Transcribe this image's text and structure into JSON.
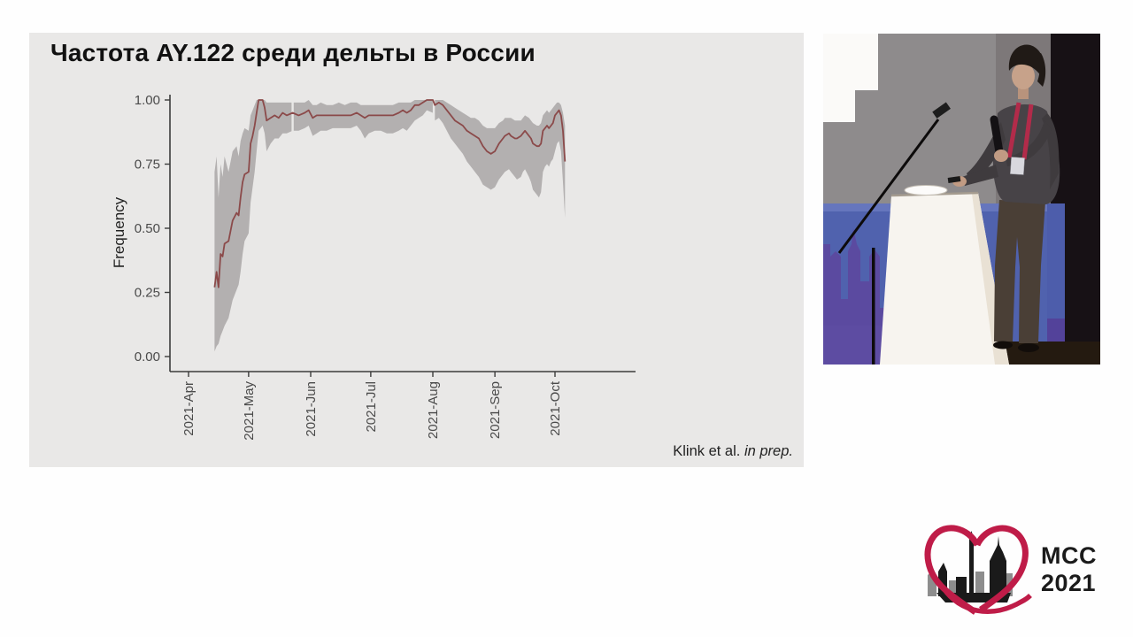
{
  "slide": {
    "background": "#e9e8e7",
    "attribution": {
      "normal": "Klink et al. ",
      "italic": "in prep."
    }
  },
  "chart_data": {
    "type": "line",
    "title": "Частота AY.122 среди дельты в России",
    "ylabel": "Frequency",
    "xlabel": "",
    "legend": "none",
    "grid": false,
    "ylim": [
      0,
      1
    ],
    "x_axis_range_days_from_apr1": [
      -9,
      223
    ],
    "x_tick_labels": [
      "2021-Apr",
      "2021-May",
      "2021-Jun",
      "2021-Jul",
      "2021-Aug",
      "2021-Sep",
      "2021-Oct"
    ],
    "x_tick_days": [
      0,
      30,
      61,
      91,
      122,
      153,
      183
    ],
    "y_tick_labels": [
      "1.00",
      "0.75",
      "0.50",
      "0.25",
      "0.00"
    ],
    "y_tick_values": [
      1.0,
      0.75,
      0.5,
      0.25,
      0.0
    ],
    "ribbon_gap_days": [
      52,
      122.5
    ],
    "colors": {
      "line": "#8b4a4a",
      "band": "#b3b0b0",
      "axis": "#3c3c3c",
      "tick_text": "#4a4a4a",
      "title_text": "#111111"
    },
    "series": [
      {
        "name": "AY.122 frequency among Delta in Russia (with confidence band)",
        "points_day_value_lo_hi": [
          [
            13,
            0.27,
            0.02,
            0.72
          ],
          [
            14,
            0.33,
            0.04,
            0.78
          ],
          [
            15,
            0.27,
            0.05,
            0.62
          ],
          [
            16,
            0.4,
            0.08,
            0.75
          ],
          [
            17,
            0.39,
            0.1,
            0.7
          ],
          [
            18,
            0.44,
            0.12,
            0.78
          ],
          [
            20,
            0.45,
            0.15,
            0.72
          ],
          [
            22,
            0.53,
            0.22,
            0.8
          ],
          [
            24,
            0.56,
            0.26,
            0.82
          ],
          [
            25,
            0.55,
            0.28,
            0.78
          ],
          [
            26,
            0.62,
            0.33,
            0.84
          ],
          [
            27,
            0.68,
            0.4,
            0.87
          ],
          [
            28,
            0.71,
            0.45,
            0.89
          ],
          [
            30,
            0.72,
            0.48,
            0.88
          ],
          [
            31,
            0.83,
            0.6,
            0.94
          ],
          [
            32,
            0.86,
            0.66,
            0.96
          ],
          [
            33,
            0.9,
            0.72,
            0.98
          ],
          [
            34,
            0.95,
            0.8,
            1.0
          ],
          [
            35,
            1.0,
            0.88,
            1.0
          ],
          [
            37,
            1.0,
            0.9,
            1.0
          ],
          [
            38,
            0.97,
            0.87,
            1.0
          ],
          [
            39,
            0.92,
            0.8,
            0.99
          ],
          [
            41,
            0.93,
            0.83,
            0.99
          ],
          [
            43,
            0.94,
            0.85,
            0.99
          ],
          [
            45,
            0.93,
            0.85,
            0.99
          ],
          [
            47,
            0.95,
            0.87,
            0.99
          ],
          [
            49,
            0.94,
            0.87,
            0.99
          ],
          [
            52,
            0.95,
            0.88,
            0.99
          ],
          [
            55,
            0.94,
            0.88,
            0.99
          ],
          [
            58,
            0.95,
            0.89,
            0.99
          ],
          [
            60,
            0.96,
            0.9,
            1.0
          ],
          [
            62,
            0.93,
            0.86,
            0.98
          ],
          [
            64,
            0.94,
            0.87,
            0.98
          ],
          [
            66,
            0.94,
            0.88,
            0.99
          ],
          [
            69,
            0.94,
            0.88,
            0.98
          ],
          [
            72,
            0.94,
            0.89,
            0.98
          ],
          [
            75,
            0.94,
            0.89,
            0.99
          ],
          [
            78,
            0.94,
            0.89,
            0.98
          ],
          [
            81,
            0.94,
            0.89,
            0.99
          ],
          [
            84,
            0.95,
            0.9,
            0.99
          ],
          [
            86,
            0.94,
            0.88,
            0.98
          ],
          [
            88,
            0.93,
            0.85,
            0.98
          ],
          [
            90,
            0.94,
            0.87,
            0.98
          ],
          [
            93,
            0.94,
            0.88,
            0.98
          ],
          [
            96,
            0.94,
            0.88,
            0.98
          ],
          [
            99,
            0.94,
            0.87,
            0.98
          ],
          [
            102,
            0.94,
            0.87,
            0.98
          ],
          [
            105,
            0.95,
            0.88,
            0.99
          ],
          [
            107,
            0.96,
            0.89,
            0.99
          ],
          [
            109,
            0.95,
            0.88,
            0.99
          ],
          [
            111,
            0.96,
            0.9,
            0.99
          ],
          [
            113,
            0.98,
            0.92,
            1.0
          ],
          [
            115,
            0.98,
            0.93,
            1.0
          ],
          [
            117,
            0.99,
            0.94,
            1.0
          ],
          [
            119,
            1.0,
            0.96,
            1.0
          ],
          [
            122,
            1.0,
            0.95,
            1.0
          ],
          [
            123,
            0.98,
            0.92,
            1.0
          ],
          [
            125,
            0.99,
            0.93,
            1.0
          ],
          [
            127,
            0.98,
            0.91,
            1.0
          ],
          [
            129,
            0.96,
            0.88,
            0.99
          ],
          [
            131,
            0.94,
            0.85,
            0.98
          ],
          [
            133,
            0.92,
            0.83,
            0.97
          ],
          [
            135,
            0.91,
            0.81,
            0.96
          ],
          [
            137,
            0.9,
            0.79,
            0.95
          ],
          [
            139,
            0.88,
            0.76,
            0.94
          ],
          [
            141,
            0.87,
            0.74,
            0.93
          ],
          [
            143,
            0.86,
            0.72,
            0.93
          ],
          [
            145,
            0.85,
            0.7,
            0.92
          ],
          [
            147,
            0.82,
            0.67,
            0.9
          ],
          [
            149,
            0.8,
            0.66,
            0.89
          ],
          [
            151,
            0.79,
            0.65,
            0.89
          ],
          [
            153,
            0.8,
            0.66,
            0.89
          ],
          [
            155,
            0.83,
            0.69,
            0.91
          ],
          [
            157,
            0.85,
            0.71,
            0.92
          ],
          [
            158,
            0.86,
            0.72,
            0.93
          ],
          [
            160,
            0.87,
            0.73,
            0.93
          ],
          [
            161,
            0.86,
            0.72,
            0.93
          ],
          [
            163,
            0.85,
            0.7,
            0.92
          ],
          [
            164,
            0.85,
            0.69,
            0.92
          ],
          [
            166,
            0.86,
            0.7,
            0.92
          ],
          [
            167,
            0.87,
            0.72,
            0.93
          ],
          [
            168,
            0.88,
            0.73,
            0.94
          ],
          [
            170,
            0.86,
            0.7,
            0.93
          ],
          [
            171,
            0.85,
            0.68,
            0.92
          ],
          [
            172,
            0.83,
            0.65,
            0.91
          ],
          [
            174,
            0.82,
            0.63,
            0.9
          ],
          [
            175,
            0.82,
            0.62,
            0.9
          ],
          [
            176,
            0.83,
            0.64,
            0.91
          ],
          [
            177,
            0.88,
            0.72,
            0.94
          ],
          [
            178,
            0.89,
            0.74,
            0.95
          ],
          [
            179,
            0.9,
            0.75,
            0.96
          ],
          [
            180,
            0.89,
            0.74,
            0.95
          ],
          [
            181,
            0.9,
            0.76,
            0.96
          ],
          [
            182,
            0.91,
            0.77,
            0.97
          ],
          [
            183,
            0.94,
            0.8,
            0.98
          ],
          [
            184,
            0.95,
            0.83,
            0.99
          ],
          [
            185,
            0.96,
            0.84,
            0.99
          ],
          [
            186,
            0.94,
            0.8,
            0.98
          ],
          [
            187,
            0.88,
            0.68,
            0.95
          ],
          [
            188,
            0.76,
            0.54,
            0.9
          ]
        ]
      }
    ]
  },
  "logo": {
    "line1": "MCC",
    "line2": "2021",
    "heart_color": "#bf1c48",
    "text_color": "#1b1b1b"
  }
}
